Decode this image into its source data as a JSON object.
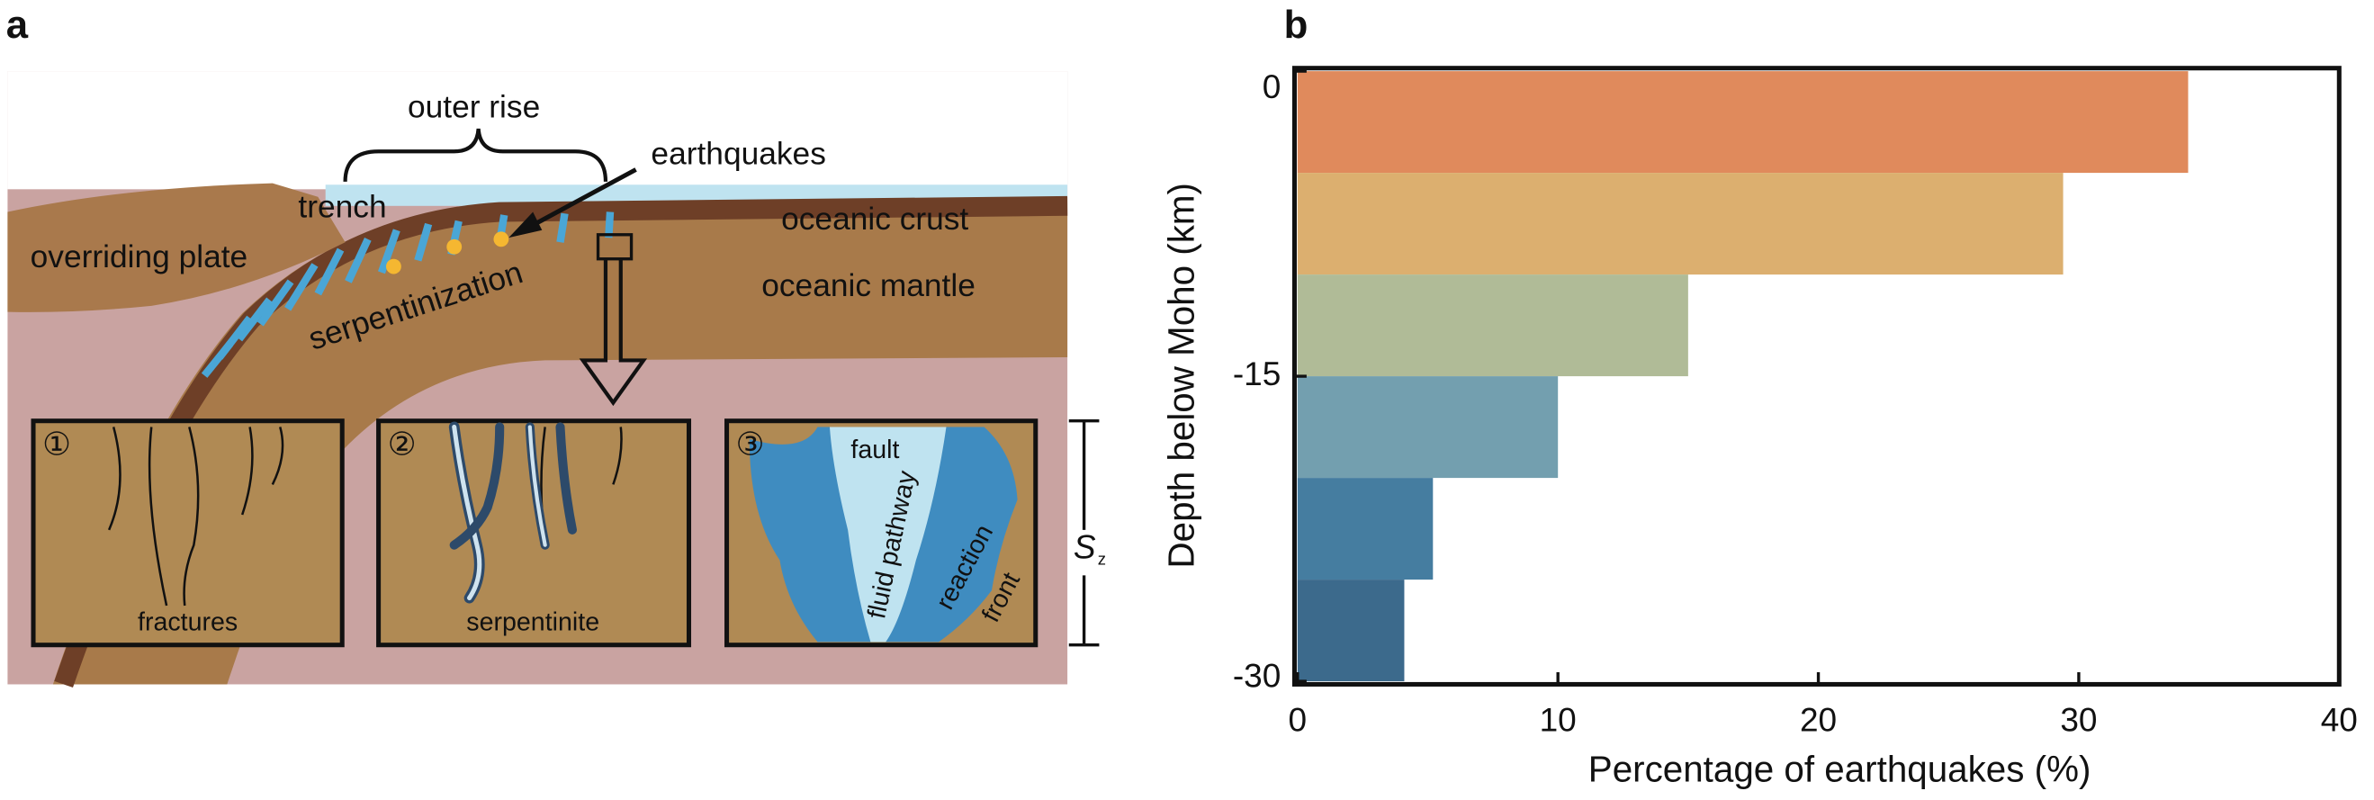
{
  "diagram": {
    "panel_a": "a",
    "outer_rise": "outer rise",
    "earthquakes": "earthquakes",
    "trench": "trench",
    "oceanic_crust": "oceanic crust",
    "overriding_plate": "overriding plate",
    "oceanic_mantle": "oceanic mantle",
    "serpentinization": "serpentinization",
    "insets": [
      {
        "number": "①",
        "label": "fractures"
      },
      {
        "number": "②",
        "label": "serpentinite"
      },
      {
        "number": "③",
        "fault": "fault",
        "fluid_pathway": "fluid pathway",
        "reaction": "reaction",
        "front": "front"
      }
    ],
    "scale_symbol": "S",
    "scale_subscript": "z"
  },
  "chart_data": {
    "type": "histogram",
    "orientation": "horizontal",
    "panel_label": "b",
    "bins": [
      0,
      -5,
      -10,
      -15,
      -20,
      -25,
      -30
    ],
    "values": [
      34.2,
      29.4,
      15.0,
      10.0,
      5.2,
      4.1
    ],
    "colors": [
      "#e08a5c",
      "#dcaf6f",
      "#b0bb97",
      "#739faf",
      "#457da0",
      "#3c6a8c"
    ],
    "xlabel": "Percentage of earthquakes (%)",
    "ylabel": "Depth below Moho (km)",
    "xlim": [
      0,
      40
    ],
    "xticks": [
      0,
      10,
      20,
      30,
      40
    ],
    "ylim": [
      -30,
      0
    ],
    "yticks": [
      0,
      -15,
      -30
    ]
  }
}
